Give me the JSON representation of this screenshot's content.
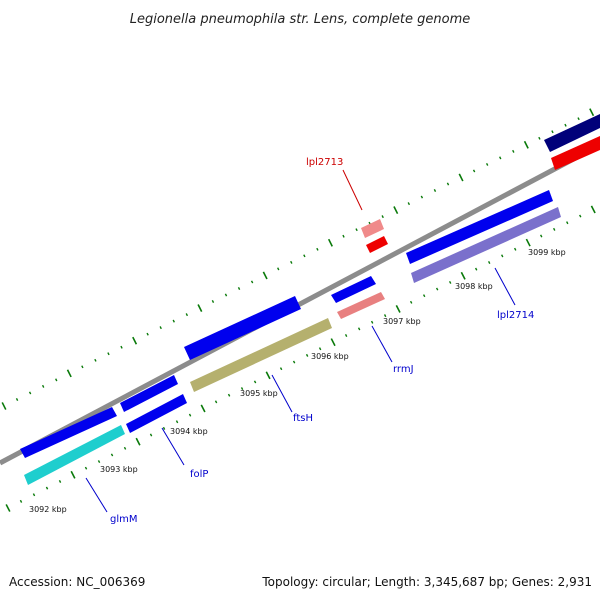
{
  "title": "Legionella pneumophila str. Lens, complete genome",
  "footer": {
    "accession": "Accession: NC_006369",
    "summary": "Topology: circular; Length: 3,345,687 bp; Genes: 2,931"
  },
  "colors": {
    "backbone": "#8c8c8c",
    "minor_tick": "#0a7a0a",
    "forward_gene": "#0000ee",
    "gene_label_blue": "#0000cc",
    "gene_label_red": "#cc0000",
    "leader_line_blue": "#0000cc",
    "leader_line_red": "#cc0000"
  },
  "scale_labels": [
    "3092 kbp",
    "3093 kbp",
    "3094 kbp",
    "3095 kbp",
    "3096 kbp",
    "3097 kbp",
    "3098 kbp",
    "3099 kbp"
  ],
  "gene_labels": [
    {
      "name": "lpl2713",
      "color": "red"
    },
    {
      "name": "lpl2714",
      "color": "blue"
    },
    {
      "name": "rrmJ",
      "color": "blue"
    },
    {
      "name": "ftsH",
      "color": "blue"
    },
    {
      "name": "folP",
      "color": "blue"
    },
    {
      "name": "glmM",
      "color": "blue"
    }
  ]
}
